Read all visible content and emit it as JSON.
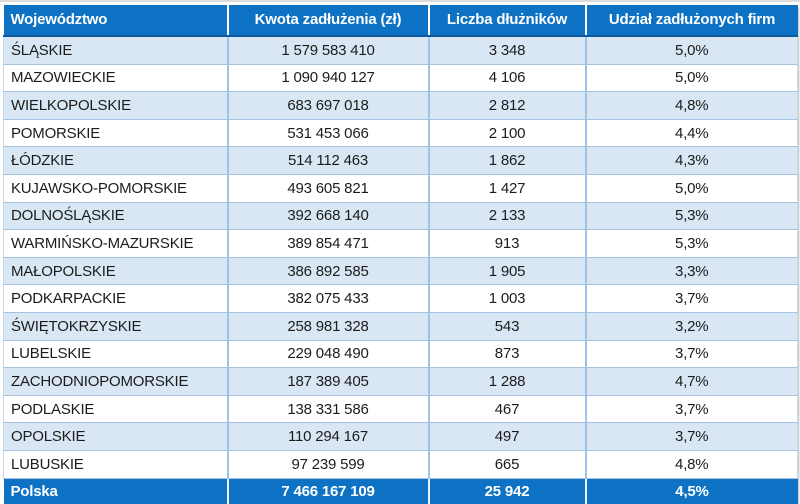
{
  "chart_data": {
    "type": "table",
    "columns": [
      "Województwo",
      "Kwota zadłużenia (zł)",
      "Liczba dłużników",
      "Udział zadłużonych firm"
    ],
    "rows": [
      [
        "ŚLĄSKIE",
        "1 579 583 410",
        "3 348",
        "5,0%"
      ],
      [
        "MAZOWIECKIE",
        "1 090 940 127",
        "4 106",
        "5,0%"
      ],
      [
        "WIELKOPOLSKIE",
        "683 697 018",
        "2 812",
        "4,8%"
      ],
      [
        "POMORSKIE",
        "531 453 066",
        "2 100",
        "4,4%"
      ],
      [
        "ŁÓDZKIE",
        "514 112 463",
        "1 862",
        "4,3%"
      ],
      [
        "KUJAWSKO-POMORSKIE",
        "493 605 821",
        "1 427",
        "5,0%"
      ],
      [
        "DOLNOŚLĄSKIE",
        "392 668 140",
        "2 133",
        "5,3%"
      ],
      [
        "WARMIŃSKO-MAZURSKIE",
        "389 854 471",
        "913",
        "5,3%"
      ],
      [
        "MAŁOPOLSKIE",
        "386 892 585",
        "1 905",
        "3,3%"
      ],
      [
        "PODKARPACKIE",
        "382 075 433",
        "1 003",
        "3,7%"
      ],
      [
        "ŚWIĘTOKRZYSKIE",
        "258 981 328",
        "543",
        "3,2%"
      ],
      [
        "LUBELSKIE",
        "229 048 490",
        "873",
        "3,7%"
      ],
      [
        "ZACHODNIOPOMORSKIE",
        "187 389 405",
        "1 288",
        "4,7%"
      ],
      [
        "PODLASKIE",
        "138 331 586",
        "467",
        "3,7%"
      ],
      [
        "OPOLSKIE",
        "110 294 167",
        "497",
        "3,7%"
      ],
      [
        "LUBUSKIE",
        "97 239 599",
        "665",
        "4,8%"
      ]
    ],
    "footer": [
      "Polska",
      "7 466 167 109",
      "25 942",
      "4,5%"
    ],
    "title": "",
    "layout_hints": {
      "striped": true,
      "first_stripe": "light-blue",
      "grid": true
    }
  },
  "colors": {
    "header_bg": "#0d72c4",
    "footer_bg": "#0d72c4",
    "row_alt_bg": "#d9e7f5",
    "row_bg": "#ffffff",
    "grid_vertical": "#9dc3e6",
    "grid_horizontal": "#a5c3de",
    "header_text": "#ffffff",
    "body_text": "#1c1c1c"
  }
}
